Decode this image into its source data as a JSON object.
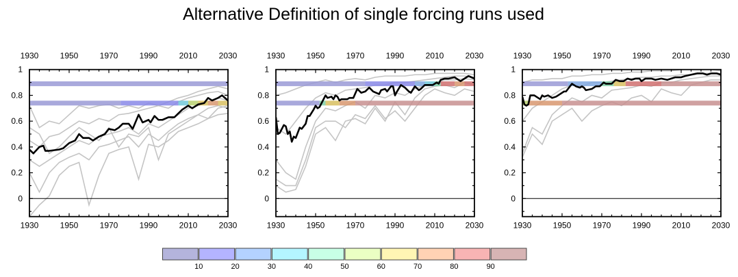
{
  "title": "Alternative Definition of single forcing runs used",
  "colorbar": {
    "colors": [
      "#b4b4dc",
      "#b4b4ff",
      "#b4d2ff",
      "#b4f5ff",
      "#c8ffe6",
      "#ebffc3",
      "#fff5b4",
      "#ffd2b4",
      "#f8b4b4",
      "#d7b4b4"
    ],
    "labels": [
      "10",
      "20",
      "30",
      "40",
      "50",
      "60",
      "70",
      "80",
      "90"
    ]
  },
  "band_colors": [
    "#9a9ad6",
    "#8888e8",
    "#80a8e0",
    "#70c8d8",
    "#80d0a8",
    "#b8d070",
    "#d8c060",
    "#d89870",
    "#d07070",
    "#c89090"
  ],
  "chart_data": [
    {
      "type": "line",
      "xlim": [
        1930,
        2030
      ],
      "ylim": [
        -0.14,
        1
      ],
      "xticks": [
        "1930",
        "1950",
        "1970",
        "1990",
        "2010",
        "2030"
      ],
      "yticks": [
        "0",
        "0.2",
        "0.4",
        "0.6",
        "0.8",
        "1"
      ],
      "reference_line": 0,
      "bands": [
        {
          "y": 0.89,
          "segments": [
            [
              1930,
              2030,
              0
            ]
          ]
        },
        {
          "y": 0.74,
          "segments": [
            [
              1930,
              1976,
              0
            ],
            [
              1976,
              2005,
              1
            ],
            [
              2005,
              2010,
              3
            ],
            [
              2010,
              2015,
              5
            ],
            [
              2015,
              2020,
              6
            ],
            [
              2020,
              2025,
              7
            ],
            [
              2025,
              2030,
              6
            ]
          ]
        }
      ],
      "ensemble_years": [
        1930,
        1935,
        1940,
        1945,
        1950,
        1955,
        1960,
        1965,
        1970,
        1975,
        1980,
        1985,
        1990,
        1995,
        2000,
        2005,
        2010,
        2015,
        2020,
        2025,
        2030
      ],
      "ensemble": [
        [
          0.72,
          0.55,
          0.6,
          0.58,
          0.65,
          0.72,
          0.7,
          0.72,
          0.73,
          0.7,
          0.72,
          0.7,
          0.74,
          0.72,
          0.75,
          0.78,
          0.8,
          0.83,
          0.85,
          0.87,
          0.85
        ],
        [
          0.45,
          0.4,
          0.48,
          0.5,
          0.55,
          0.6,
          0.58,
          0.62,
          0.6,
          0.65,
          0.66,
          0.68,
          0.7,
          0.72,
          0.7,
          0.75,
          0.78,
          0.8,
          0.82,
          0.83,
          0.8
        ],
        [
          0.3,
          0.25,
          0.3,
          0.35,
          0.4,
          0.45,
          0.42,
          0.48,
          0.5,
          0.52,
          0.55,
          0.5,
          0.58,
          0.55,
          0.6,
          0.65,
          0.7,
          0.72,
          0.75,
          0.78,
          0.76
        ],
        [
          0.2,
          0.05,
          0.2,
          0.28,
          0.32,
          0.35,
          0.3,
          0.4,
          0.42,
          0.45,
          0.48,
          0.4,
          0.5,
          0.45,
          0.52,
          0.58,
          0.62,
          0.65,
          0.7,
          0.72,
          0.7
        ],
        [
          -0.14,
          -0.05,
          0.02,
          0.18,
          0.25,
          0.28,
          -0.05,
          0.18,
          0.35,
          0.38,
          0.4,
          0.15,
          0.42,
          0.4,
          0.45,
          0.52,
          0.55,
          0.58,
          0.62,
          0.65,
          0.66
        ],
        [
          0.55,
          0.5,
          0.35,
          0.4,
          0.48,
          0.55,
          0.5,
          0.45,
          0.55,
          0.4,
          0.5,
          0.48,
          0.55,
          0.3,
          0.5,
          0.55,
          0.6,
          0.65,
          0.62,
          0.7,
          0.72
        ]
      ],
      "mean": {
        "x": [
          1930,
          1932,
          1935,
          1937,
          1938,
          1940,
          1945,
          1947,
          1950,
          1953,
          1955,
          1957,
          1960,
          1962,
          1965,
          1968,
          1970,
          1973,
          1975,
          1977,
          1980,
          1982,
          1985,
          1987,
          1990,
          1991,
          1993,
          1995,
          1997,
          2000,
          2003,
          2005,
          2007,
          2010,
          2012,
          2015,
          2018,
          2020,
          2022,
          2025,
          2027,
          2030
        ],
        "y": [
          0.38,
          0.35,
          0.4,
          0.41,
          0.37,
          0.37,
          0.38,
          0.39,
          0.43,
          0.45,
          0.5,
          0.47,
          0.47,
          0.45,
          0.48,
          0.5,
          0.54,
          0.53,
          0.55,
          0.58,
          0.58,
          0.54,
          0.65,
          0.59,
          0.61,
          0.59,
          0.64,
          0.61,
          0.61,
          0.63,
          0.63,
          0.66,
          0.69,
          0.72,
          0.7,
          0.73,
          0.74,
          0.78,
          0.76,
          0.78,
          0.8,
          0.76
        ]
      }
    },
    {
      "type": "line",
      "xlim": [
        1930,
        2030
      ],
      "ylim": [
        -0.14,
        1
      ],
      "xticks": [
        "1930",
        "1950",
        "1970",
        "1990",
        "2010",
        "2030"
      ],
      "yticks": [
        "0",
        "0.2",
        "0.4",
        "0.6",
        "0.8",
        "1"
      ],
      "reference_line": 0,
      "bands": [
        {
          "y": 0.89,
          "segments": [
            [
              1930,
              1975,
              0
            ],
            [
              1975,
              2000,
              1
            ],
            [
              2000,
              2005,
              2
            ],
            [
              2005,
              2010,
              3
            ],
            [
              2010,
              2013,
              4
            ],
            [
              2013,
              2020,
              8
            ],
            [
              2020,
              2025,
              7
            ],
            [
              2025,
              2030,
              8
            ]
          ]
        },
        {
          "y": 0.74,
          "segments": [
            [
              1930,
              1952,
              0
            ],
            [
              1952,
              1955,
              4
            ],
            [
              1955,
              1962,
              6
            ],
            [
              1962,
              1970,
              7
            ],
            [
              1970,
              2030,
              9
            ]
          ]
        }
      ],
      "ensemble_years": [
        1930,
        1935,
        1940,
        1945,
        1950,
        1955,
        1960,
        1965,
        1970,
        1975,
        1980,
        1985,
        1990,
        1995,
        2000,
        2005,
        2010,
        2015,
        2020,
        2025,
        2030
      ],
      "ensemble": [
        [
          0.8,
          0.82,
          0.85,
          0.88,
          0.9,
          0.92,
          0.9,
          0.92,
          0.93,
          0.92,
          0.94,
          0.95,
          0.95,
          0.95,
          0.96,
          0.96,
          0.97,
          0.97,
          0.97,
          0.97,
          0.96
        ],
        [
          0.55,
          0.5,
          0.6,
          0.7,
          0.78,
          0.82,
          0.8,
          0.84,
          0.85,
          0.86,
          0.88,
          0.88,
          0.9,
          0.9,
          0.91,
          0.92,
          0.93,
          0.94,
          0.95,
          0.95,
          0.94
        ],
        [
          0.3,
          0.2,
          0.15,
          0.4,
          0.6,
          0.7,
          0.68,
          0.72,
          0.75,
          0.7,
          0.8,
          0.78,
          0.82,
          0.8,
          0.85,
          0.88,
          0.9,
          0.92,
          0.92,
          0.93,
          0.92
        ],
        [
          0.1,
          0.05,
          0.07,
          0.25,
          0.5,
          0.55,
          0.45,
          0.6,
          0.62,
          0.58,
          0.7,
          0.6,
          0.75,
          0.65,
          0.78,
          0.85,
          0.87,
          0.88,
          0.86,
          0.9,
          0.88
        ],
        [
          0.15,
          0.1,
          0.1,
          0.3,
          0.55,
          0.6,
          0.6,
          0.55,
          0.65,
          0.62,
          0.72,
          0.62,
          0.68,
          0.6,
          0.7,
          0.8,
          0.85,
          0.82,
          0.8,
          0.85,
          0.83
        ]
      ],
      "mean": {
        "x": [
          1930,
          1931,
          1932,
          1934,
          1935,
          1936,
          1937,
          1938,
          1939,
          1940,
          1942,
          1943,
          1945,
          1946,
          1947,
          1949,
          1950,
          1951,
          1952,
          1953,
          1955,
          1956,
          1958,
          1959,
          1960,
          1961,
          1962,
          1963,
          1966,
          1967,
          1969,
          1971,
          1973,
          1975,
          1977,
          1979,
          1982,
          1983,
          1985,
          1986,
          1988,
          1989,
          1990,
          1991,
          1993,
          1995,
          1997,
          1998,
          2000,
          2002,
          2003,
          2005,
          2007,
          2009,
          2011,
          2012,
          2013,
          2015,
          2017,
          2020,
          2022,
          2023,
          2025,
          2027,
          2030
        ],
        "y": [
          0.63,
          0.5,
          0.51,
          0.57,
          0.56,
          0.5,
          0.52,
          0.44,
          0.48,
          0.47,
          0.55,
          0.54,
          0.58,
          0.64,
          0.64,
          0.69,
          0.72,
          0.7,
          0.71,
          0.74,
          0.8,
          0.78,
          0.79,
          0.77,
          0.8,
          0.79,
          0.76,
          0.77,
          0.77,
          0.78,
          0.78,
          0.85,
          0.82,
          0.83,
          0.86,
          0.83,
          0.81,
          0.84,
          0.85,
          0.83,
          0.87,
          0.87,
          0.8,
          0.83,
          0.88,
          0.86,
          0.83,
          0.82,
          0.87,
          0.84,
          0.85,
          0.88,
          0.88,
          0.88,
          0.9,
          0.89,
          0.92,
          0.93,
          0.93,
          0.94,
          0.92,
          0.91,
          0.93,
          0.95,
          0.93
        ]
      }
    },
    {
      "type": "line",
      "xlim": [
        1930,
        2030
      ],
      "ylim": [
        -0.14,
        1
      ],
      "xticks": [
        "1930",
        "1950",
        "1970",
        "1990",
        "2010",
        "2030"
      ],
      "yticks": [
        "0",
        "0.2",
        "0.4",
        "0.6",
        "0.8",
        "1"
      ],
      "reference_line": 0,
      "bands": [
        {
          "y": 0.89,
          "segments": [
            [
              1930,
              1953,
              0
            ],
            [
              1953,
              1970,
              2
            ],
            [
              1970,
              1976,
              4
            ],
            [
              1976,
              1982,
              6
            ],
            [
              1982,
              2000,
              8
            ],
            [
              2000,
              2030,
              9
            ]
          ]
        },
        {
          "y": 0.74,
          "segments": [
            [
              1930,
              1933,
              5
            ],
            [
              1933,
              1950,
              7
            ],
            [
              1950,
              2030,
              9
            ]
          ]
        }
      ],
      "ensemble_years": [
        1930,
        1935,
        1940,
        1945,
        1950,
        1955,
        1960,
        1965,
        1970,
        1975,
        1980,
        1985,
        1990,
        1995,
        2000,
        2005,
        2010,
        2015,
        2020,
        2025,
        2030
      ],
      "ensemble": [
        [
          0.9,
          0.92,
          0.92,
          0.93,
          0.93,
          0.95,
          0.95,
          0.96,
          0.96,
          0.97,
          0.97,
          0.98,
          0.98,
          0.99,
          0.99,
          0.99,
          1.0,
          1.0,
          1.0,
          1.0,
          0.99
        ],
        [
          0.6,
          0.7,
          0.75,
          0.8,
          0.85,
          0.88,
          0.87,
          0.9,
          0.9,
          0.91,
          0.92,
          0.93,
          0.94,
          0.94,
          0.95,
          0.95,
          0.96,
          0.96,
          0.97,
          0.97,
          0.97
        ],
        [
          0.35,
          0.55,
          0.5,
          0.65,
          0.72,
          0.78,
          0.75,
          0.8,
          0.78,
          0.84,
          0.85,
          0.86,
          0.88,
          0.87,
          0.9,
          0.9,
          0.92,
          0.93,
          0.94,
          0.95,
          0.95
        ],
        [
          0.32,
          0.5,
          0.42,
          0.6,
          0.65,
          0.7,
          0.6,
          0.68,
          0.72,
          0.75,
          0.72,
          0.78,
          0.8,
          0.75,
          0.85,
          0.82,
          0.8,
          0.88,
          0.9,
          0.92,
          0.92
        ]
      ],
      "mean": {
        "x": [
          1930,
          1931,
          1932,
          1933,
          1934,
          1936,
          1937,
          1939,
          1940,
          1941,
          1943,
          1945,
          1947,
          1949,
          1951,
          1952,
          1954,
          1955,
          1956,
          1957,
          1959,
          1960,
          1961,
          1962,
          1965,
          1967,
          1969,
          1971,
          1972,
          1975,
          1977,
          1979,
          1981,
          1983,
          1985,
          1987,
          1989,
          1990,
          1992,
          1995,
          1997,
          2000,
          2003,
          2005,
          2007,
          2010,
          2012,
          2015,
          2018,
          2021,
          2023,
          2025,
          2028,
          2030
        ],
        "y": [
          0.79,
          0.73,
          0.72,
          0.73,
          0.8,
          0.8,
          0.79,
          0.77,
          0.8,
          0.79,
          0.8,
          0.78,
          0.79,
          0.81,
          0.83,
          0.83,
          0.87,
          0.89,
          0.88,
          0.87,
          0.86,
          0.87,
          0.86,
          0.84,
          0.85,
          0.87,
          0.87,
          0.9,
          0.89,
          0.89,
          0.92,
          0.91,
          0.91,
          0.93,
          0.92,
          0.93,
          0.93,
          0.91,
          0.93,
          0.93,
          0.92,
          0.93,
          0.92,
          0.93,
          0.94,
          0.94,
          0.95,
          0.96,
          0.97,
          0.97,
          0.96,
          0.97,
          0.97,
          0.96
        ]
      }
    }
  ]
}
